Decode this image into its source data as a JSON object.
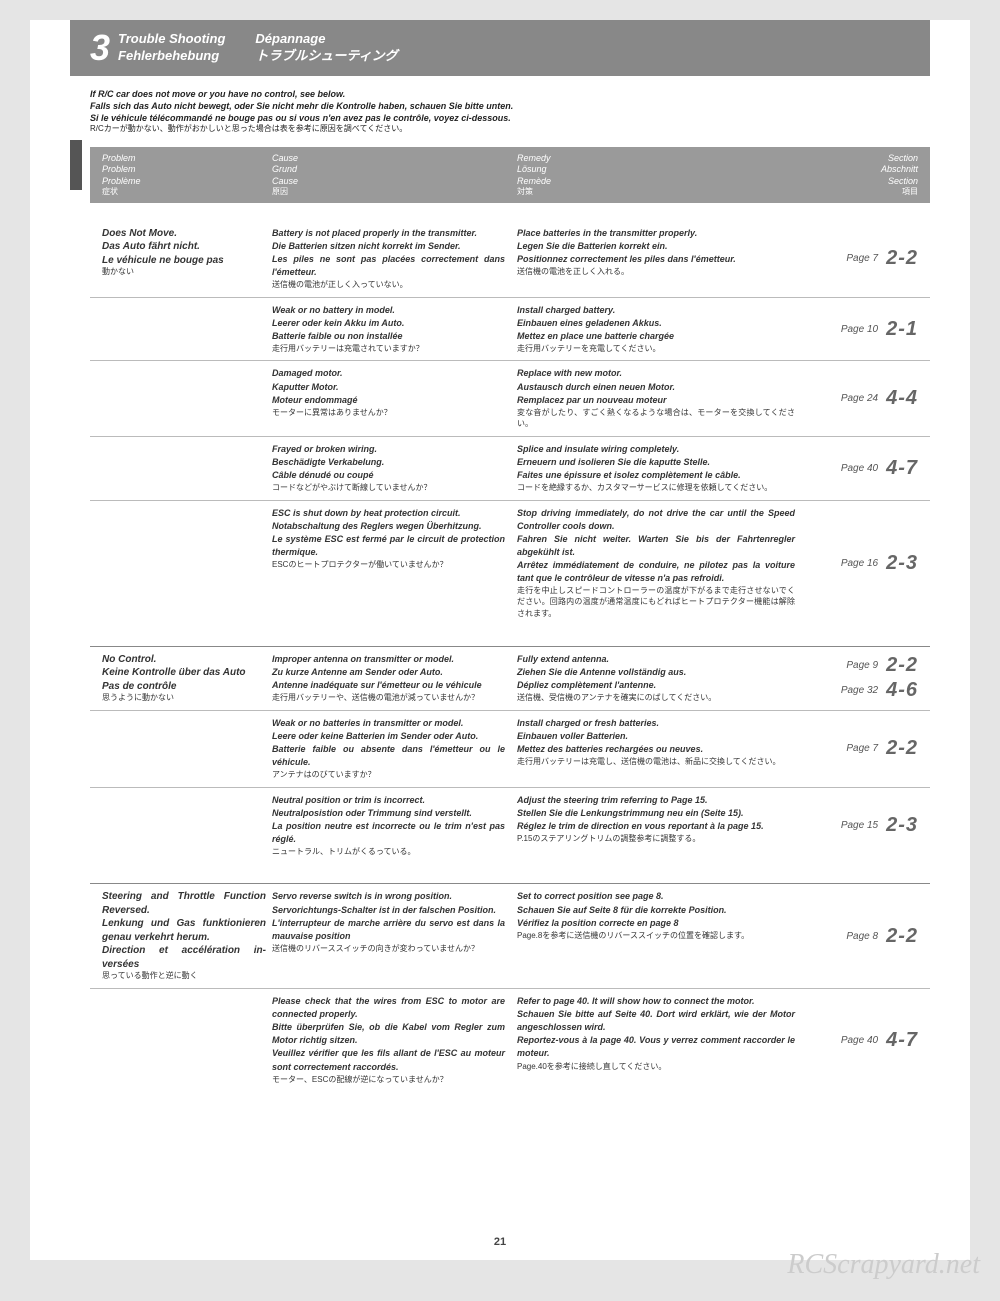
{
  "header": {
    "number": "3",
    "titles": {
      "en": "Trouble Shooting",
      "de": "Fehlerbehebung",
      "fr": "Dépannage",
      "jp": "トラブルシューティング"
    }
  },
  "intro": {
    "en": "If R/C car does not move or you have no control, see below.",
    "de": "Falls sich das Auto nicht bewegt, oder Sie nicht mehr die Kontrolle haben, schauen Sie bitte unten.",
    "fr": "Si le véhicule télécommandé ne bouge pas ou si vous n'en avez pas le contrôle, voyez ci-dessous.",
    "jp": "R/Cカーが動かない、動作がおかしいと思った場合は表を参考に原因を調べてください。"
  },
  "colheaders": {
    "problem": {
      "en": "Problem",
      "de": "Problem",
      "fr": "Problème",
      "jp": "症状"
    },
    "cause": {
      "en": "Cause",
      "de": "Grund",
      "fr": "Cause",
      "jp": "原因"
    },
    "remedy": {
      "en": "Remedy",
      "de": "Lösung",
      "fr": "Remède",
      "jp": "対策"
    },
    "section": {
      "en": "Section",
      "de": "Abschnitt",
      "fr": "Section",
      "jp": "項目"
    }
  },
  "groups": [
    {
      "problem": {
        "en": "Does Not Move.",
        "de": "Das Auto fährt nicht.",
        "fr": "Le véhicule ne bouge pas",
        "jp": "動かない"
      },
      "rows": [
        {
          "cause": {
            "en": "Battery is not placed properly in the transmitter.",
            "de": "Die Batterien sitzen nicht korrekt im Sender.",
            "fr": "Les piles ne sont pas placées correctement dans l'émetteur.",
            "jp": "送信機の電池が正しく入っていない。"
          },
          "remedy": {
            "en": "Place batteries in the transmitter properly.",
            "de": "Legen Sie die Batterien korrekt ein.",
            "fr": "Positionnez correctement les piles dans l'émetteur.",
            "jp": "送信機の電池を正しく入れる。"
          },
          "refs": [
            {
              "page": "Page 7",
              "sec": "2-2"
            }
          ]
        },
        {
          "cause": {
            "en": "Weak or no battery in model.",
            "de": "Leerer oder kein Akku im Auto.",
            "fr": "Batterie faible ou non installée",
            "jp": "走行用バッテリーは充電されていますか？"
          },
          "remedy": {
            "en": "Install charged battery.",
            "de": "Einbauen eines geladenen Akkus.",
            "fr": "Mettez en place une batterie chargée",
            "jp": "走行用バッテリーを充電してください。"
          },
          "refs": [
            {
              "page": "Page 10",
              "sec": "2-1"
            }
          ]
        },
        {
          "cause": {
            "en": "Damaged motor.",
            "de": "Kaputter Motor.",
            "fr": "Moteur endommagé",
            "jp": "モーターに異常はありませんか？"
          },
          "remedy": {
            "en": "Replace with new motor.",
            "de": "Austausch durch einen neuen Motor.",
            "fr": "Remplacez par un nouveau moteur",
            "jp": "変な音がしたり、すごく熱くなるような場合は、モーターを交換してください。"
          },
          "refs": [
            {
              "page": "Page 24",
              "sec": "4-4"
            }
          ]
        },
        {
          "cause": {
            "en": "Frayed or broken wiring.",
            "de": "Beschädigte Verkabelung.",
            "fr": "Câble dénudé ou coupé",
            "jp": "コードなどがやぶけて断線していませんか？"
          },
          "remedy": {
            "en": "Splice and insulate wiring completely.",
            "de": "Erneuern und isolieren Sie die kaputte Stelle.",
            "fr": "Faites une épissure et isolez complètement le câble.",
            "jp": "コードを絶縁するか、カスタマーサービスに修理を依頼してください。"
          },
          "refs": [
            {
              "page": "Page 40",
              "sec": "4-7"
            }
          ]
        },
        {
          "cause": {
            "en": "ESC is shut down by heat protection circuit.",
            "de": "Notabschaltung des Reglers wegen Überhitzung.",
            "fr": "Le système ESC est fermé par le circuit de protection thermique.",
            "jp": "ESCのヒートプロテクターが働いていませんか？"
          },
          "remedy": {
            "en": "Stop driving immediately, do not drive the car until the Speed Controller cools down.",
            "de": "Fahren Sie nicht weiter. Warten Sie bis der Fahrten­regler abgekühlt ist.",
            "fr": "Arrêtez immédiatement de conduire, ne pilotez pas la voiture tant que le contrôleur de vitesse n'a pas refroidi.",
            "jp": "走行を中止しスピードコントローラーの温度が下がるまで走行させないでください。回路内の温度が通常温度にもどればヒートプロテクター機能は解除されます。"
          },
          "refs": [
            {
              "page": "Page 16",
              "sec": "2-3"
            }
          ]
        }
      ]
    },
    {
      "problem": {
        "en": "No Control.",
        "de": "Keine Kontrolle über das Auto",
        "fr": "Pas de contrôle",
        "jp": "思うように動かない"
      },
      "rows": [
        {
          "cause": {
            "en": "Improper antenna on transmitter or model.",
            "de": "Zu kurze Antenne am Sender oder Auto.",
            "fr": "Antenne inadéquate sur l'émetteur ou le véhicule",
            "jp": "走行用バッテリーや、送信機の電池が減っていませんか？"
          },
          "remedy": {
            "en": "Fully extend antenna.",
            "de": "Ziehen Sie die Antenne vollständig aus.",
            "fr": "Dépliez complètement l'antenne.",
            "jp": "送信機、受信機のアンテナを確実にのばしてください。"
          },
          "refs": [
            {
              "page": "Page 9",
              "sec": "2-2"
            },
            {
              "page": "Page 32",
              "sec": "4-6"
            }
          ]
        },
        {
          "cause": {
            "en": "Weak or no batteries in transmitter or model.",
            "de": "Leere oder keine Batterien im Sender oder Auto.",
            "fr": "Batterie faible ou absente dans l'émetteur ou le véhicule.",
            "jp": "アンテナはのびていますか？"
          },
          "remedy": {
            "en": "Install charged or fresh batteries.",
            "de": "Einbauen voller Batterien.",
            "fr": "Mettez des batteries rechargées ou neuves.",
            "jp": "走行用バッテリーは充電し、送信機の電池は、新品に交換してください。"
          },
          "refs": [
            {
              "page": "Page 7",
              "sec": "2-2"
            }
          ]
        },
        {
          "cause": {
            "en": "Neutral position or trim is incorrect.",
            "de": "Neutralposistion oder Trimmung sind verstellt.",
            "fr": "La position neutre est incorrecte ou le trim n'est pas réglé.",
            "jp": "ニュートラル、トリムがくるっている。"
          },
          "remedy": {
            "en": "Adjust the steering trim referring to Page 15.",
            "de": "Stellen Sie die Lenkungstrimmung neu ein (Seite 15).",
            "fr": "Réglez le trim de direction en vous reportant à la page 15.",
            "jp": "P.15のステアリングトリムの調整参考に調整する。"
          },
          "refs": [
            {
              "page": "Page 15",
              "sec": "2-3"
            }
          ]
        }
      ]
    },
    {
      "problem": {
        "en": "Steering and Throttle Func­tion Reversed.",
        "de": "Lenkung und Gas funktionie­ren genau verkehrt herum.",
        "fr": "Direction et accélération in­versées",
        "jp": "思っている動作と逆に動く"
      },
      "rows": [
        {
          "cause": {
            "en": "Servo reverse switch is in wrong position.",
            "de": "Servorichtungs-Schalter ist in der falschen Position.",
            "fr": "L'interrupteur de marche arrière du servo est dans la mauvaise position",
            "jp": "送信機のリバーススイッチの向きが変わっていませんか？"
          },
          "remedy": {
            "en": "Set to correct position see page 8.",
            "de": "Schauen Sie auf Seite 8 für die korrekte Position.",
            "fr": "Vérifiez la position correcte en page 8",
            "jp": "Page.8を参考に送信機のリバーススイッチの位置を確認します。"
          },
          "refs": [
            {
              "page": "Page 8",
              "sec": "2-2"
            }
          ]
        },
        {
          "cause": {
            "en": "Please check that the wires from ESC to motor are connected properly.",
            "de": "Bitte überprüfen Sie, ob die Kabel vom Regler zum Motor richtig sitzen.",
            "fr": "Veuillez vérifier que les fils allant de l'ESC au mo­teur sont correctement raccordés.",
            "jp": "モーター、ESCの配線が逆になっていませんか？"
          },
          "remedy": {
            "en": "Refer to page 40. It will show how to connect the motor.",
            "de": "Schauen Sie bitte auf Seite 40. Dort wird erklärt, wie der Motor angeschlossen wird.",
            "fr": "Reportez-vous à la page 40. Vous y verrez comment raccorder le moteur.",
            "jp": "Page.40を参考に接続し直してください。"
          },
          "refs": [
            {
              "page": "Page 40",
              "sec": "4-7"
            }
          ]
        }
      ]
    }
  ],
  "page_number": "21",
  "watermark": "RCScrapyard.net"
}
